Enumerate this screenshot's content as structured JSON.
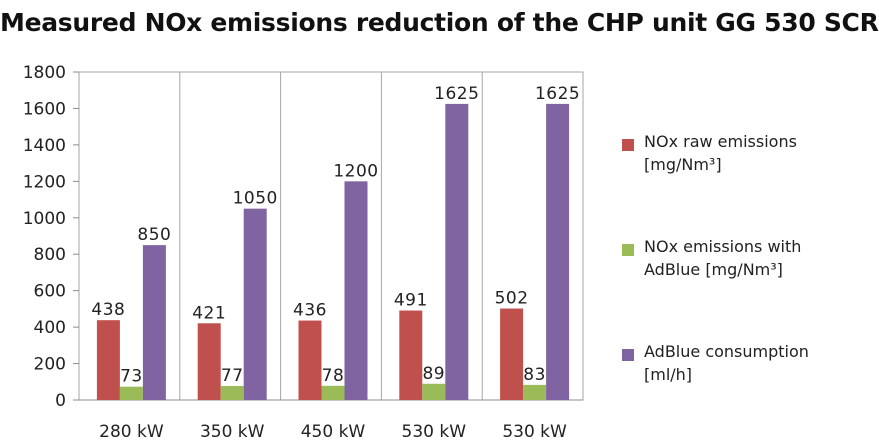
{
  "chart_data": {
    "type": "bar",
    "title": "Measured NOx emissions reduction of the CHP unit GG 530 SCR",
    "categories": [
      "280 kW",
      "350 kW",
      "450 kW",
      "530 kW",
      "530 kW"
    ],
    "series": [
      {
        "name": "NOx raw emissions [mg/Nm³]",
        "values": [
          438,
          421,
          436,
          491,
          502
        ],
        "color": "#c0504d"
      },
      {
        "name": "NOx emissions with AdBlue [mg/Nm³]",
        "values": [
          73,
          77,
          78,
          89,
          83
        ],
        "color": "#9bbb59"
      },
      {
        "name": "AdBlue consumption [ml/h]",
        "values": [
          850,
          1050,
          1200,
          1625,
          1625
        ],
        "color": "#8064a2"
      }
    ],
    "ylim": [
      0,
      1800
    ],
    "yticks": [
      0,
      200,
      400,
      600,
      800,
      1000,
      1200,
      1400,
      1600,
      1800
    ],
    "grid": true,
    "legend": "right",
    "xlabel": "",
    "ylabel": ""
  }
}
